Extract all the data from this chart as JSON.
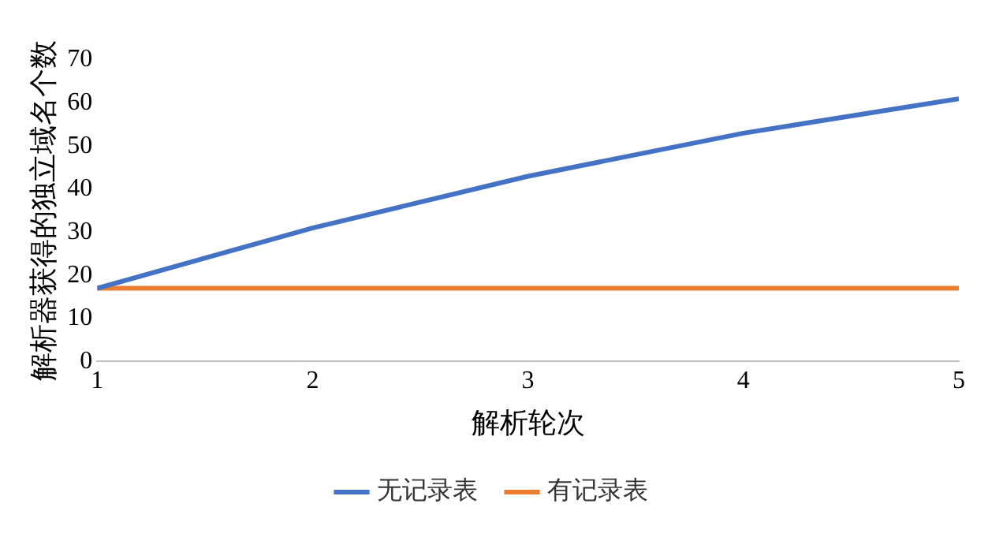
{
  "chart_data": {
    "type": "line",
    "xlabel": "解析轮次",
    "ylabel": "解析器获得的独立域名个数",
    "x": [
      1,
      2,
      3,
      4,
      5
    ],
    "series": [
      {
        "name": "无记录表",
        "color": "#4472c4",
        "values": [
          17,
          31,
          43,
          53,
          61
        ]
      },
      {
        "name": "有记录表",
        "color": "#ed7d31",
        "values": [
          17,
          17,
          17,
          17,
          17
        ]
      }
    ],
    "xlim": [
      1,
      5
    ],
    "xticks": [
      1,
      2,
      3,
      4,
      5
    ],
    "ylim": [
      0,
      70
    ],
    "yticks": [
      0,
      10,
      20,
      30,
      40,
      50,
      60,
      70
    ],
    "grid": false,
    "legend": "bottom",
    "marker": "none",
    "line_style": "solid"
  }
}
